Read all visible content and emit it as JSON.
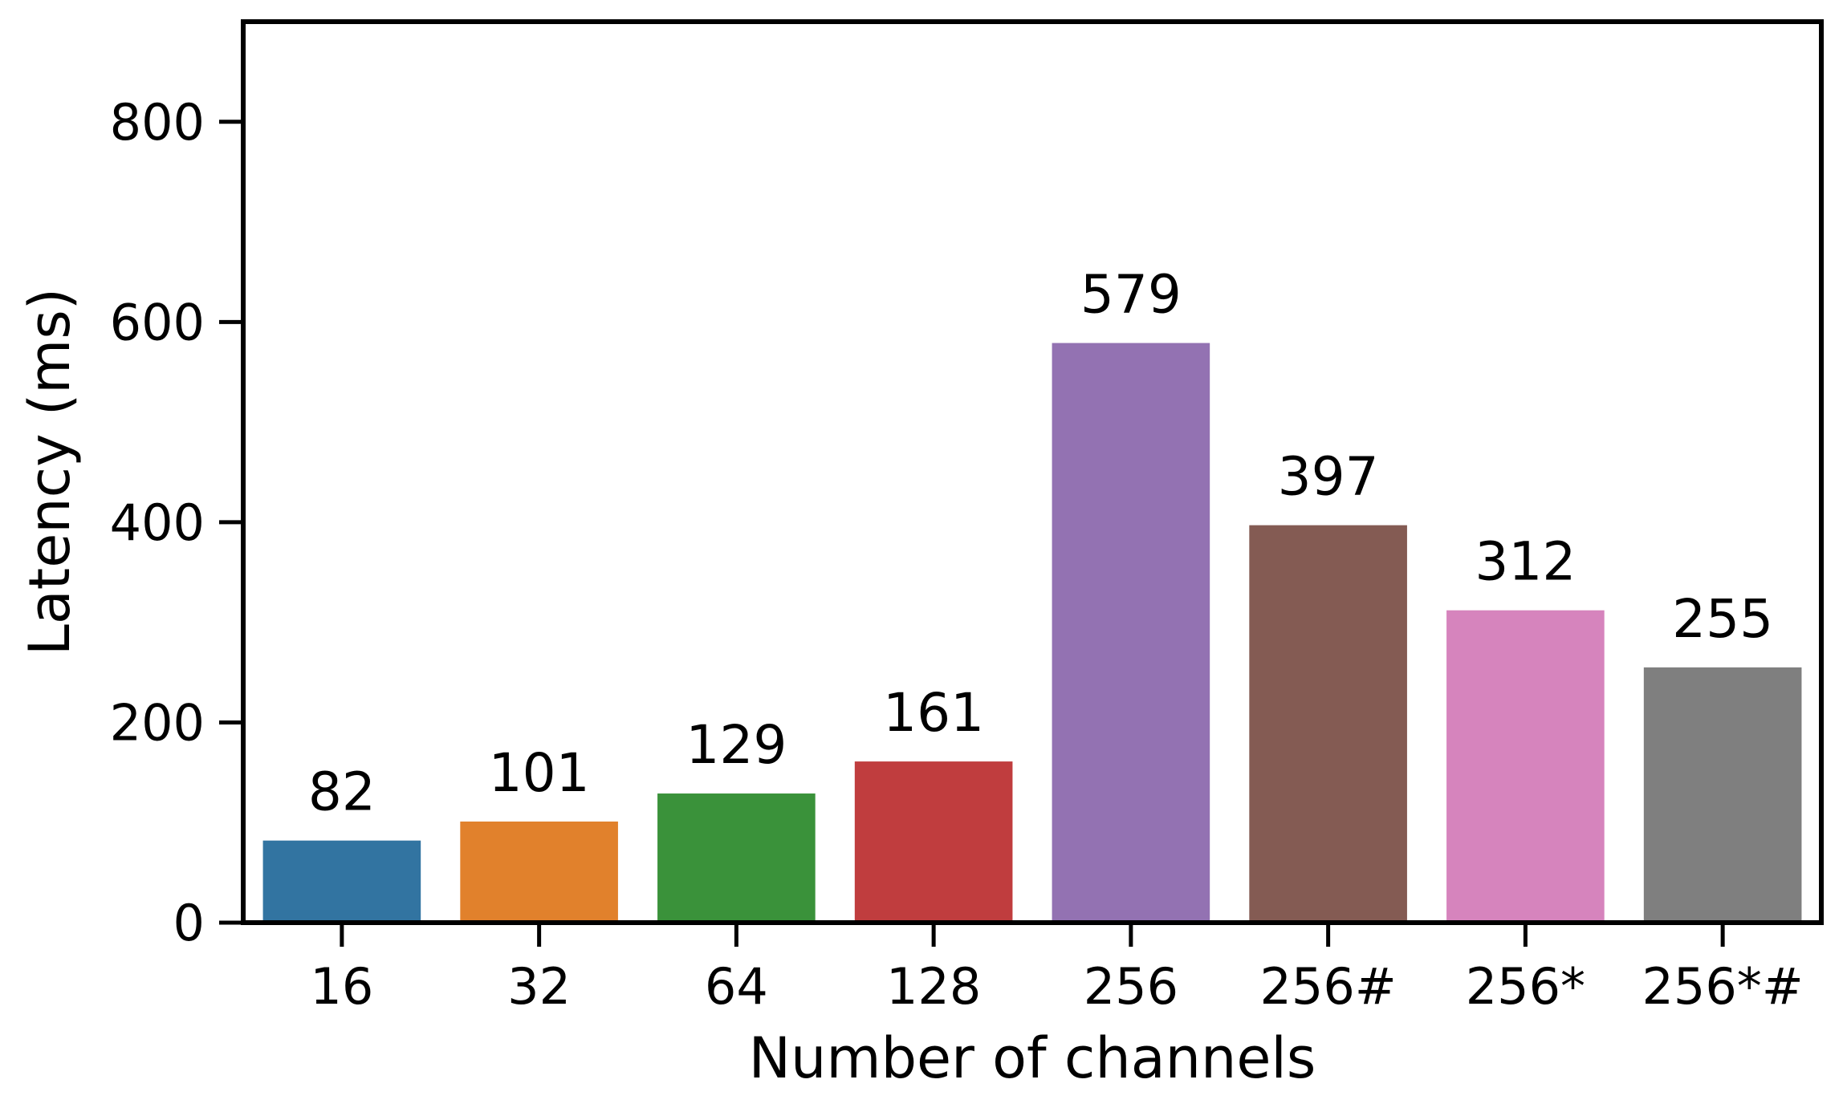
{
  "chart_data": {
    "type": "bar",
    "xlabel": "Number of channels",
    "ylabel": "Latency (ms)",
    "categories": [
      "16",
      "32",
      "64",
      "128",
      "256",
      "256#",
      "256*",
      "256*#"
    ],
    "values": [
      82,
      101,
      129,
      161,
      579,
      397,
      312,
      255
    ],
    "value_labels": [
      "82",
      "101",
      "129",
      "161",
      "579",
      "397",
      "312",
      "255"
    ],
    "colors": [
      "#3274a1",
      "#e1812c",
      "#3a923a",
      "#c03d3e",
      "#9372b2",
      "#845b53",
      "#d684bd",
      "#7f7f7f"
    ],
    "ylim": [
      0,
      900
    ],
    "yticks": [
      0,
      200,
      400,
      600,
      800
    ],
    "ytick_labels": [
      "0",
      "200",
      "400",
      "600",
      "800"
    ],
    "grid": false,
    "legend": "none"
  }
}
